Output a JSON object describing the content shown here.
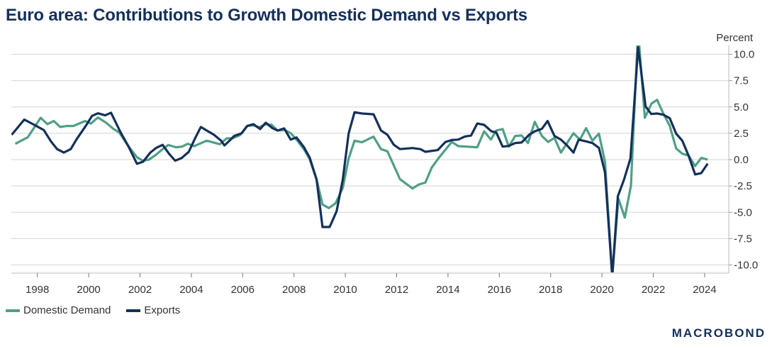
{
  "chart_data": {
    "type": "line",
    "title": "Euro area: Contributions to Growth Domestic Demand vs Exports",
    "ylabel": "Percent",
    "xlabel": "",
    "ylim": [
      -10.8,
      10.8
    ],
    "xlim": [
      1997.0,
      2024.9
    ],
    "y_ticks": [
      "10.0",
      "7.5",
      "5.0",
      "2.5",
      "0.0",
      "-2.5",
      "-5.0",
      "-7.5",
      "-10.0"
    ],
    "y_tick_values": [
      10,
      7.5,
      5,
      2.5,
      0,
      -2.5,
      -5,
      -7.5,
      -10
    ],
    "x_ticks": [
      "1998",
      "2000",
      "2002",
      "2004",
      "2006",
      "2008",
      "2010",
      "2012",
      "2014",
      "2016",
      "2018",
      "2020",
      "2022",
      "2024"
    ],
    "grid": true,
    "y_axis_side": "right",
    "legend_position": "bottom-left",
    "series": [
      {
        "name": "Domestic Demand",
        "color": "#4f9f86",
        "x": [
          1997.14,
          1997.63,
          1998.13,
          1998.39,
          1998.64,
          1998.89,
          1999.15,
          1999.4,
          1999.86,
          2000.09,
          2000.36,
          2000.69,
          2000.96,
          2001.19,
          2001.56,
          2001.88,
          2002.12,
          2002.35,
          2002.62,
          2002.88,
          2003.1,
          2003.4,
          2003.64,
          2003.86,
          2004.11,
          2004.6,
          2005.11,
          2005.38,
          2005.6,
          2005.89,
          2006.17,
          2006.4,
          2006.65,
          2006.9,
          2007.13,
          2007.36,
          2007.64,
          2007.87,
          2008.1,
          2008.38,
          2008.6,
          2008.88,
          2009.11,
          2009.36,
          2009.62,
          2009.9,
          2010.13,
          2010.36,
          2010.65,
          2011.1,
          2011.39,
          2011.64,
          2012.13,
          2012.62,
          2012.87,
          2013.12,
          2013.37,
          2013.66,
          2014.15,
          2014.4,
          2015.14,
          2015.41,
          2015.67,
          2015.88,
          2016.13,
          2016.37,
          2016.62,
          2016.87,
          2017.12,
          2017.38,
          2017.66,
          2017.9,
          2018.15,
          2018.4,
          2018.89,
          2019.14,
          2019.38,
          2019.63,
          2019.88,
          2020.12,
          2020.4,
          2020.64,
          2020.89,
          2021.13,
          2021.38,
          2021.45,
          2021.67,
          2021.93,
          2022.15,
          2022.39,
          2022.64,
          2022.89,
          2023.13,
          2023.38,
          2023.63,
          2023.87,
          2024.12
        ],
        "y": [
          1.5,
          2.13,
          3.97,
          3.37,
          3.66,
          3.1,
          3.19,
          3.19,
          3.66,
          3.43,
          4.0,
          3.48,
          2.92,
          2.58,
          1.23,
          0.22,
          -0.11,
          0.0,
          0.45,
          1.0,
          1.39,
          1.17,
          1.23,
          1.5,
          1.28,
          1.8,
          1.46,
          2.02,
          2.02,
          2.31,
          3.19,
          3.25,
          3.08,
          3.37,
          3.3,
          2.76,
          2.8,
          2.51,
          1.9,
          1.0,
          0.11,
          -1.9,
          -4.26,
          -4.6,
          -4.15,
          -2.69,
          0.11,
          1.8,
          1.64,
          2.18,
          1.0,
          0.79,
          -1.86,
          -2.74,
          -2.36,
          -2.18,
          -0.74,
          0.22,
          1.68,
          1.28,
          1.17,
          2.69,
          1.9,
          2.76,
          2.9,
          1.23,
          2.24,
          2.29,
          1.57,
          3.59,
          2.24,
          1.68,
          2.07,
          0.67,
          2.51,
          1.9,
          2.98,
          1.8,
          2.47,
          -0.22,
          -11.1,
          -3.7,
          -5.5,
          -2.47,
          10.9,
          10.9,
          3.97,
          5.32,
          5.68,
          4.38,
          3.21,
          1.06,
          0.56,
          0.38,
          -0.61,
          0.16,
          0.0
        ]
      },
      {
        "name": "Exports",
        "color": "#14305a",
        "x": [
          1997.0,
          1997.49,
          1997.88,
          1998.25,
          1998.54,
          1998.77,
          1999.03,
          1999.3,
          1999.52,
          1999.9,
          2000.13,
          2000.36,
          2000.64,
          2000.87,
          2001.24,
          2001.56,
          2001.88,
          2002.12,
          2002.4,
          2002.62,
          2002.88,
          2003.13,
          2003.37,
          2003.63,
          2003.9,
          2004.14,
          2004.37,
          2004.64,
          2004.88,
          2005.16,
          2005.29,
          2005.53,
          2005.67,
          2005.96,
          2006.18,
          2006.42,
          2006.68,
          2006.9,
          2007.15,
          2007.36,
          2007.62,
          2007.87,
          2008.1,
          2008.38,
          2008.61,
          2008.88,
          2009.11,
          2009.39,
          2009.66,
          2009.9,
          2010.13,
          2010.36,
          2010.65,
          2011.1,
          2011.39,
          2011.64,
          2011.89,
          2012.13,
          2012.62,
          2012.92,
          2013.12,
          2013.6,
          2013.9,
          2014.15,
          2014.4,
          2014.65,
          2014.9,
          2015.14,
          2015.41,
          2015.69,
          2015.88,
          2016.13,
          2016.37,
          2016.62,
          2016.87,
          2017.16,
          2017.38,
          2017.66,
          2017.88,
          2018.15,
          2018.4,
          2018.64,
          2018.89,
          2019.09,
          2019.38,
          2019.63,
          2019.88,
          2020.12,
          2020.4,
          2020.62,
          2020.86,
          2021.11,
          2021.41,
          2021.7,
          2021.92,
          2022.15,
          2022.39,
          2022.64,
          2022.89,
          2023.13,
          2023.38,
          2023.63,
          2023.87,
          2024.12
        ],
        "y": [
          2.36,
          3.8,
          3.3,
          2.8,
          1.7,
          1.0,
          0.67,
          1.0,
          1.9,
          3.25,
          4.15,
          4.4,
          4.2,
          4.45,
          2.6,
          1.2,
          -0.4,
          -0.2,
          0.67,
          1.1,
          1.4,
          0.56,
          -0.1,
          0.16,
          0.74,
          2.0,
          3.1,
          2.7,
          2.36,
          1.8,
          1.35,
          1.9,
          2.25,
          2.5,
          3.2,
          3.37,
          2.9,
          3.5,
          3.0,
          2.76,
          2.96,
          1.9,
          2.1,
          1.2,
          0.2,
          -1.9,
          -6.4,
          -6.4,
          -4.9,
          -1.9,
          2.5,
          4.5,
          4.38,
          4.3,
          2.77,
          2.36,
          1.41,
          1.0,
          1.1,
          1.0,
          0.74,
          0.9,
          1.68,
          1.86,
          1.9,
          2.18,
          2.29,
          3.43,
          3.3,
          2.69,
          2.58,
          1.23,
          1.3,
          1.57,
          1.62,
          2.36,
          2.69,
          2.92,
          3.66,
          2.24,
          1.9,
          1.35,
          0.67,
          1.9,
          1.73,
          1.57,
          1.12,
          -1.23,
          -11.1,
          -3.48,
          -1.9,
          0.11,
          10.66,
          5.05,
          4.33,
          4.38,
          4.26,
          3.93,
          2.47,
          1.8,
          0.34,
          -1.41,
          -1.28,
          -0.38
        ]
      }
    ]
  },
  "logo_text": "MACROBOND"
}
